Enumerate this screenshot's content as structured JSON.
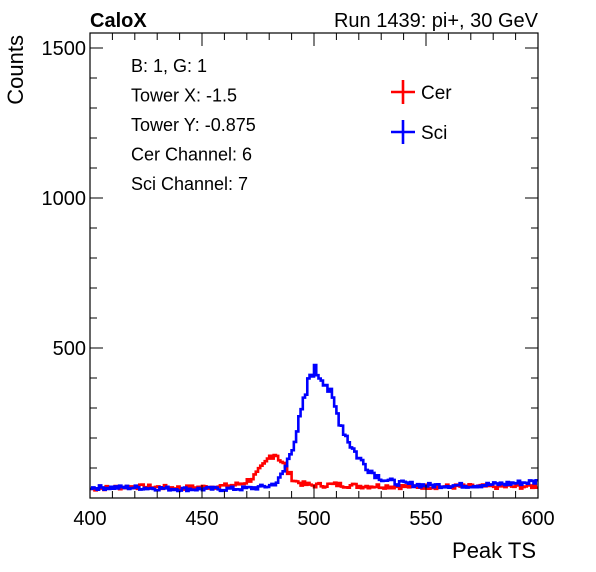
{
  "chart_data": {
    "type": "line",
    "header_left": "CaloX",
    "header_right": "Run 1439: pi+, 30 GeV",
    "xlabel": "Peak TS",
    "ylabel": "Counts",
    "xlim": [
      400,
      600
    ],
    "ylim": [
      0,
      1550
    ],
    "x_ticks": [
      400,
      450,
      500,
      550,
      600
    ],
    "y_ticks": [
      500,
      1000,
      1500
    ],
    "info_lines": [
      "B: 1, G: 1",
      "Tower X: -1.5",
      "Tower Y: -0.875",
      "Cer Channel: 6",
      "Sci Channel: 7"
    ],
    "legend_position": "top-right",
    "bin_width": 1,
    "series": [
      {
        "name": "Cer",
        "color": "#ff0000",
        "points": [
          [
            400,
            30
          ],
          [
            410,
            35
          ],
          [
            420,
            38
          ],
          [
            430,
            36
          ],
          [
            440,
            34
          ],
          [
            450,
            36
          ],
          [
            460,
            40
          ],
          [
            466,
            45
          ],
          [
            470,
            55
          ],
          [
            474,
            75
          ],
          [
            478,
            110
          ],
          [
            481,
            145
          ],
          [
            483,
            150
          ],
          [
            486,
            118
          ],
          [
            489,
            80
          ],
          [
            492,
            55
          ],
          [
            496,
            45
          ],
          [
            500,
            42
          ],
          [
            510,
            45
          ],
          [
            520,
            40
          ],
          [
            530,
            40
          ],
          [
            540,
            38
          ],
          [
            550,
            38
          ],
          [
            560,
            38
          ],
          [
            570,
            38
          ],
          [
            580,
            38
          ],
          [
            590,
            38
          ],
          [
            600,
            40
          ]
        ]
      },
      {
        "name": "Sci",
        "color": "#0000ff",
        "points": [
          [
            400,
            35
          ],
          [
            420,
            35
          ],
          [
            440,
            30
          ],
          [
            450,
            30
          ],
          [
            460,
            30
          ],
          [
            470,
            32
          ],
          [
            475,
            35
          ],
          [
            480,
            40
          ],
          [
            484,
            55
          ],
          [
            487,
            95
          ],
          [
            490,
            160
          ],
          [
            493,
            240
          ],
          [
            496,
            330
          ],
          [
            499,
            430
          ],
          [
            502,
            415
          ],
          [
            505,
            395
          ],
          [
            508,
            330
          ],
          [
            511,
            270
          ],
          [
            514,
            215
          ],
          [
            517,
            170
          ],
          [
            520,
            135
          ],
          [
            524,
            100
          ],
          [
            528,
            75
          ],
          [
            532,
            60
          ],
          [
            536,
            52
          ],
          [
            540,
            48
          ],
          [
            550,
            42
          ],
          [
            560,
            42
          ],
          [
            570,
            42
          ],
          [
            580,
            45
          ],
          [
            590,
            50
          ],
          [
            600,
            55
          ]
        ]
      }
    ]
  }
}
